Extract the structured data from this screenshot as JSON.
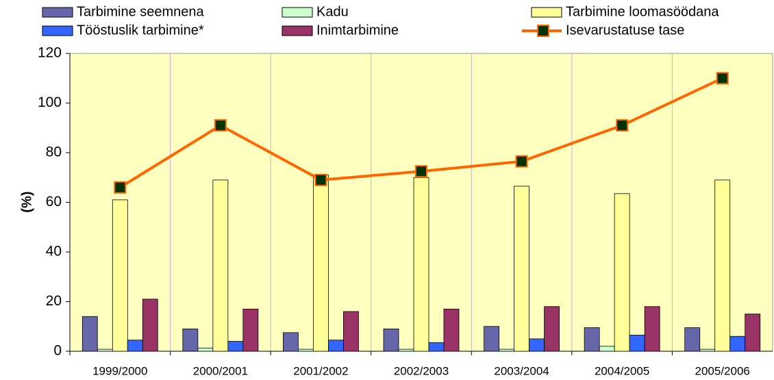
{
  "chart_data": {
    "type": "bar",
    "y_label": "(%)",
    "categories": [
      "1999/2000",
      "2000/2001",
      "2001/2002",
      "2002/2003",
      "2003/2004",
      "2004/2005",
      "2005/2006"
    ],
    "series": [
      {
        "name": "Tarbimine seemnena",
        "color": "#6666aa",
        "values": [
          14,
          9,
          7.5,
          9,
          10,
          9.5,
          9.5
        ]
      },
      {
        "name": "Kadu",
        "color": "#ccffcc",
        "values": [
          0.8,
          1.3,
          0.8,
          0.8,
          0.8,
          2,
          0.8
        ]
      },
      {
        "name": "Tarbimine loomasöödana",
        "color": "#ffff99",
        "values": [
          61,
          69,
          71,
          70,
          66.5,
          63.5,
          69
        ]
      },
      {
        "name": "Tööstuslik tarbimine*",
        "color": "#3366ff",
        "values": [
          4.5,
          4,
          4.5,
          3.5,
          5,
          6.5,
          6
        ]
      },
      {
        "name": "Inimtarbimine",
        "color": "#993366",
        "values": [
          21,
          17,
          16,
          17,
          18,
          18,
          15
        ]
      },
      {
        "name": "Isevarustatuse tase",
        "color": "#ff6600",
        "type": "line",
        "marker_color": "#003300",
        "values": [
          66,
          91,
          69,
          72.5,
          76.5,
          91,
          110
        ]
      }
    ],
    "ylim": [
      0,
      120
    ],
    "yticks": [
      0,
      20,
      40,
      60,
      80,
      100,
      120
    ],
    "grid": false
  }
}
